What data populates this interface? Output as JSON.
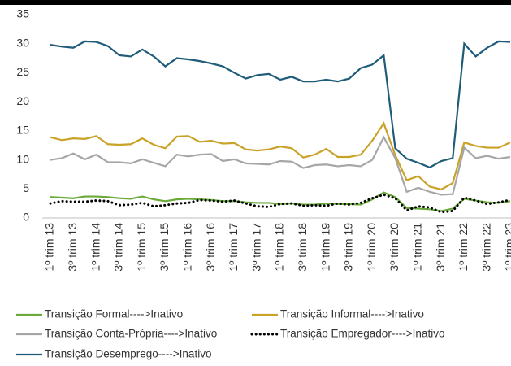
{
  "chart_data": {
    "type": "line",
    "categories": [
      "1º trim 13",
      null,
      "3º trim 13",
      null,
      "1º trim 14",
      null,
      "3º trim 14",
      null,
      "1º trim 15",
      null,
      "3º trim 15",
      null,
      "1º trim 16",
      null,
      "3º trim 16",
      null,
      "1º trim 17",
      null,
      "3º trim 17",
      null,
      "1º trim 18",
      null,
      "3º trim 18",
      null,
      "1º trim 19",
      null,
      "3º trim 19",
      null,
      "1º trim 20",
      null,
      "3º trim 20",
      null,
      "1º trim 21",
      null,
      "3º trim 21",
      null,
      "1º trim 22",
      null,
      "3º trim 22",
      null,
      "1º trim 23"
    ],
    "ylim": [
      0,
      35
    ],
    "yticks": [
      0,
      5,
      10,
      15,
      20,
      25,
      30,
      35
    ],
    "series": [
      {
        "name": "Transição Formal---->Inativo",
        "color": "#6aaa3a",
        "values": [
          3.6,
          3.5,
          3.4,
          3.7,
          3.7,
          3.6,
          3.4,
          3.3,
          3.7,
          3.2,
          2.9,
          3.2,
          3.3,
          3.2,
          3.1,
          2.9,
          2.9,
          2.7,
          2.6,
          2.6,
          2.4,
          2.5,
          2.3,
          2.3,
          2.5,
          2.4,
          2.4,
          2.3,
          3.2,
          4.4,
          3.6,
          1.7,
          1.6,
          1.5,
          1.2,
          1.6,
          3.3,
          3.0,
          2.7,
          2.6,
          2.9
        ]
      },
      {
        "name": "Transição Informal---->Inativo",
        "color": "#c9a227",
        "values": [
          13.9,
          13.4,
          13.7,
          13.6,
          14.1,
          12.7,
          12.6,
          12.7,
          13.7,
          12.6,
          12.0,
          14.0,
          14.1,
          13.1,
          13.3,
          12.8,
          12.9,
          11.8,
          11.6,
          11.8,
          12.3,
          12.0,
          10.4,
          10.9,
          11.9,
          10.5,
          10.5,
          10.9,
          13.3,
          16.3,
          10.8,
          6.5,
          7.2,
          5.4,
          4.9,
          6.0,
          13.0,
          12.4,
          12.1,
          12.1,
          13.0
        ]
      },
      {
        "name": "Transição Conta-Própria---->Inativo",
        "color": "#a6a6a6",
        "values": [
          10.0,
          10.3,
          11.1,
          10.1,
          10.9,
          9.6,
          9.6,
          9.4,
          10.1,
          9.5,
          8.9,
          10.9,
          10.6,
          10.9,
          11.0,
          9.8,
          10.1,
          9.4,
          9.3,
          9.2,
          9.8,
          9.7,
          8.6,
          9.1,
          9.2,
          8.9,
          9.1,
          8.9,
          10.0,
          13.9,
          10.3,
          4.5,
          5.2,
          4.5,
          4.0,
          4.1,
          12.1,
          10.3,
          10.7,
          10.2,
          10.5
        ]
      },
      {
        "name": "Transição Empregador---->Inativo",
        "color": "#000000",
        "dash": "dotted",
        "values": [
          2.5,
          2.9,
          2.8,
          2.8,
          3.0,
          2.9,
          2.2,
          2.3,
          2.6,
          2.0,
          2.2,
          2.5,
          2.6,
          3.1,
          3.0,
          2.8,
          3.0,
          2.5,
          2.0,
          1.9,
          2.4,
          2.5,
          2.1,
          2.2,
          2.1,
          2.5,
          2.3,
          2.6,
          3.4,
          4.0,
          3.4,
          1.3,
          2.0,
          1.8,
          1.0,
          1.2,
          3.5,
          3.0,
          2.4,
          2.7,
          3.1
        ]
      },
      {
        "name": "Transição Desemprego---->Inativo",
        "color": "#1f5c7a",
        "values": [
          29.8,
          29.5,
          29.3,
          30.4,
          30.3,
          29.6,
          28.0,
          27.8,
          29.0,
          27.8,
          26.1,
          27.5,
          27.3,
          27.0,
          26.6,
          26.1,
          25.0,
          24.0,
          24.6,
          24.8,
          23.8,
          24.3,
          23.5,
          23.5,
          23.8,
          23.5,
          24.0,
          25.8,
          26.4,
          28.0,
          12.0,
          10.2,
          9.5,
          8.7,
          9.8,
          10.3,
          30.0,
          27.8,
          29.3,
          30.4,
          30.3
        ]
      }
    ]
  }
}
